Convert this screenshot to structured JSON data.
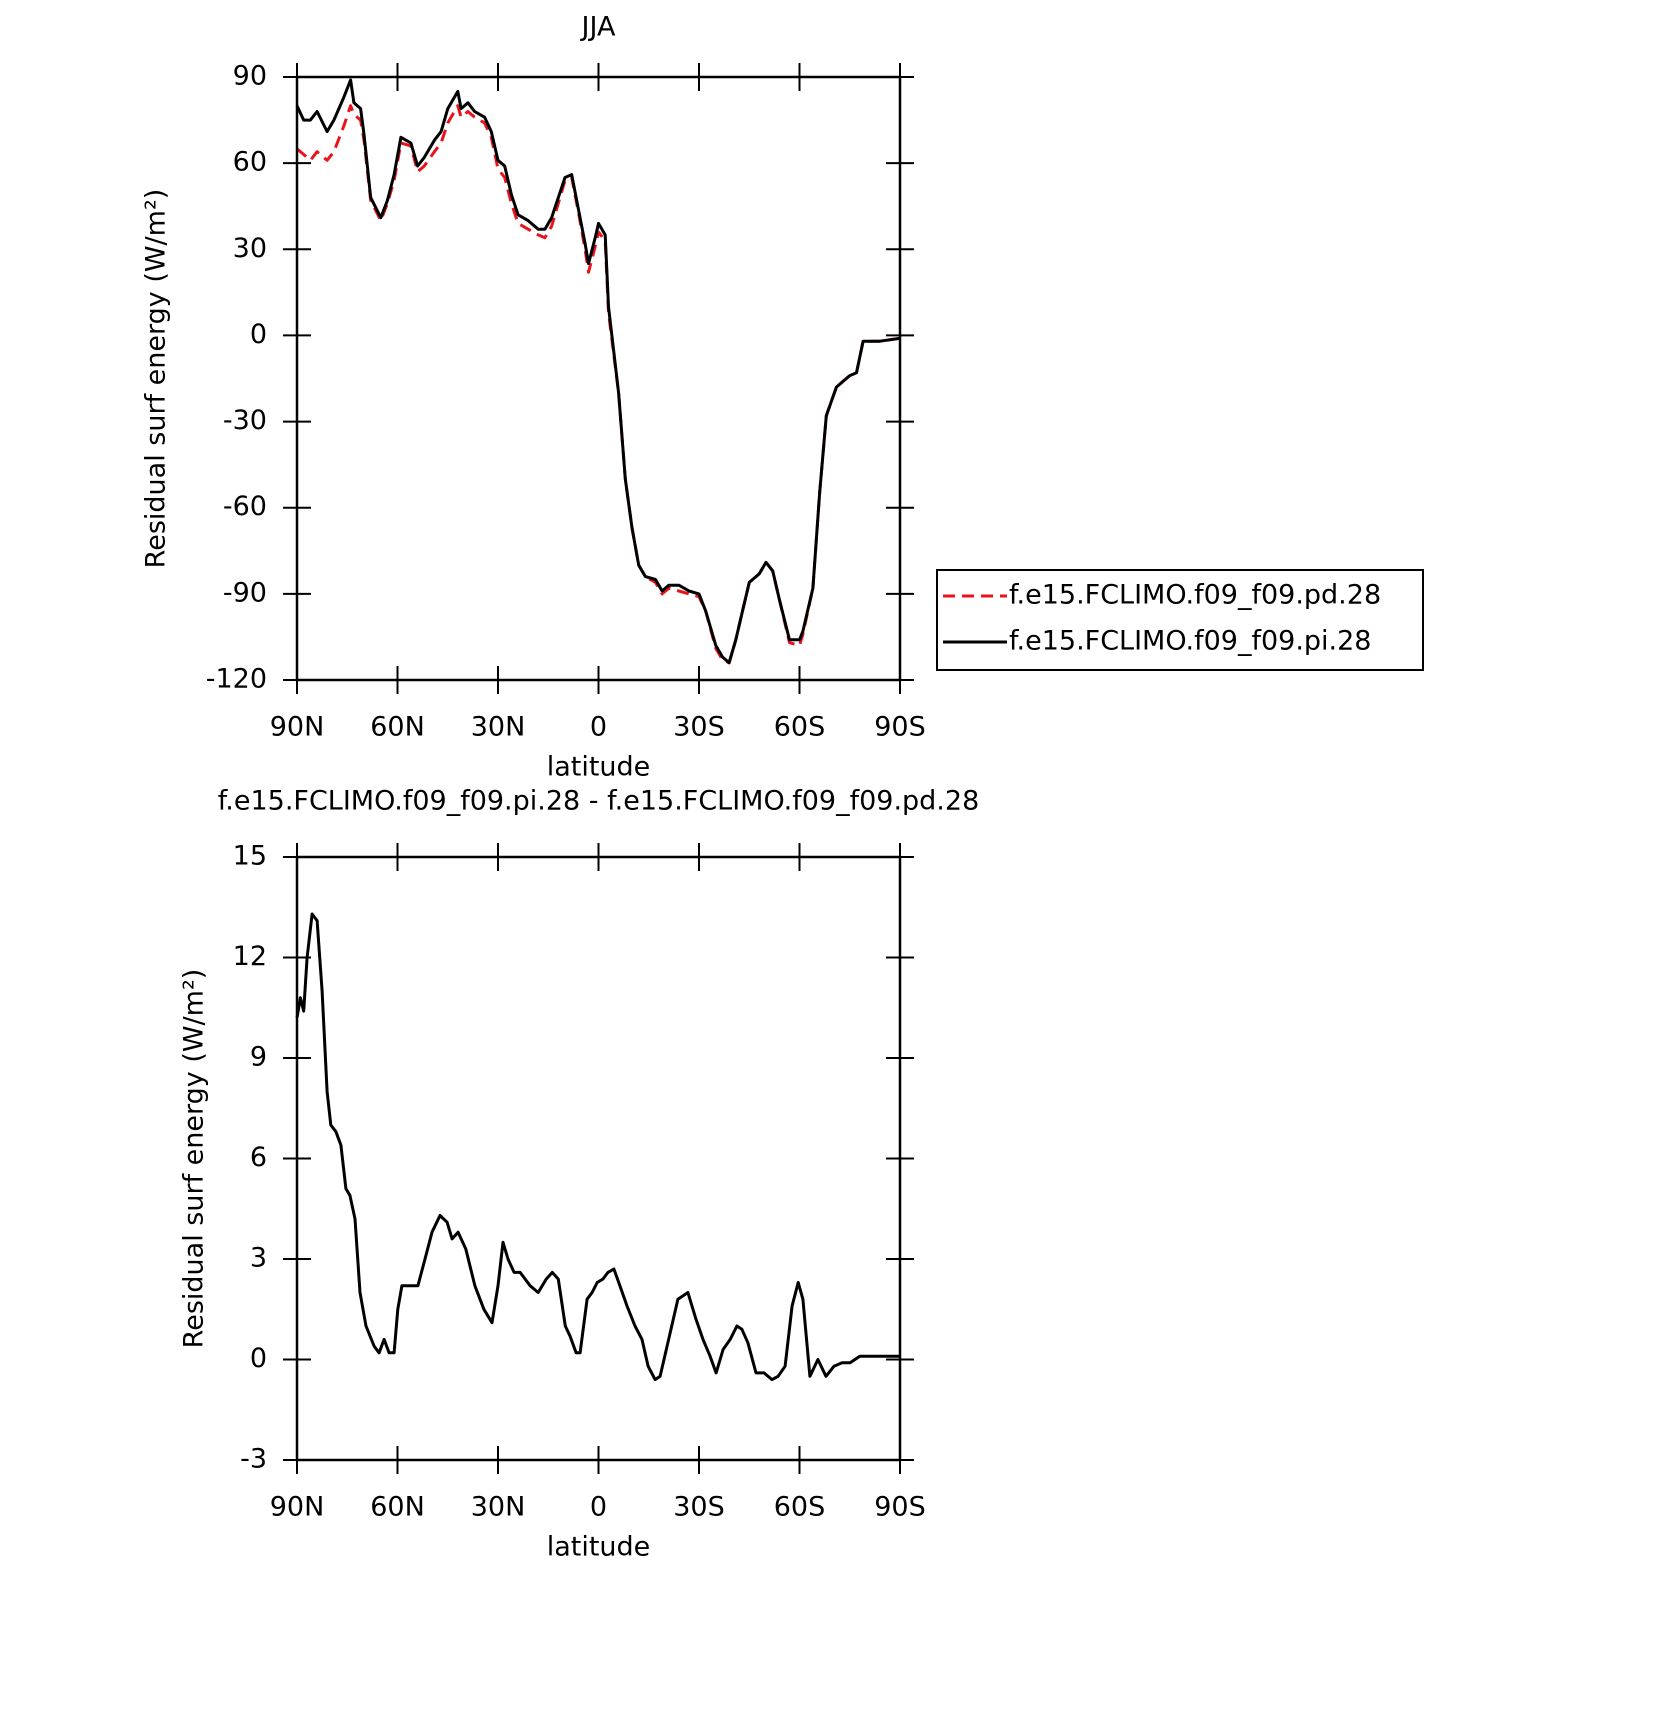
{
  "chart_data": [
    {
      "type": "line",
      "title": "JJA",
      "xlabel": "latitude",
      "ylabel": "Residual surf energy (W/m²)",
      "x": [
        90,
        88,
        86,
        84,
        81,
        79,
        76,
        74,
        73,
        71,
        70,
        68,
        65,
        63,
        61,
        59,
        56,
        54,
        52,
        49,
        47,
        45,
        42,
        41,
        39,
        37,
        34,
        32,
        30,
        28,
        26,
        24,
        21,
        18,
        16,
        14,
        12,
        10,
        8,
        6,
        4,
        3,
        1,
        0,
        -2,
        -3,
        -6,
        -8,
        -10,
        -12,
        -14,
        -17,
        -19,
        -21,
        -24,
        -27,
        -30,
        -32,
        -35,
        -37,
        -39,
        -41,
        -43,
        -45,
        -48,
        -50,
        -52,
        -54,
        -57,
        -60,
        -61,
        -64,
        -66,
        -68,
        -71,
        -73,
        -75,
        -77,
        -79,
        -84,
        -90
      ],
      "series": [
        {
          "name": "f.e15.FCLIMO.f09_f09.pd.28",
          "color": "#e8141c",
          "line_style": "dashed",
          "values": [
            65,
            63,
            61,
            64,
            61,
            64,
            73,
            80,
            77,
            75,
            68,
            47,
            40,
            46,
            54,
            67,
            66,
            57,
            59,
            64,
            67,
            74,
            80,
            76,
            78,
            76,
            74,
            69,
            58,
            55,
            46,
            39,
            37,
            35,
            34,
            38,
            46,
            54,
            55,
            43,
            30,
            22,
            31,
            36,
            33,
            8,
            -20,
            -50,
            -67,
            -80,
            -84,
            -86,
            -90,
            -88,
            -89,
            -90,
            -91,
            -96,
            -109,
            -113,
            -114,
            -106,
            -96,
            -86,
            -83,
            -79,
            -82,
            -92,
            -107,
            -108,
            -104,
            -88,
            -55,
            -28,
            -18,
            -16,
            -14,
            -13,
            -2,
            -2,
            -1
          ]
        },
        {
          "name": "f.e15.FCLIMO.f09_f09.pi.28",
          "color": "#000000",
          "line_style": "solid",
          "values": [
            80,
            75,
            75,
            78,
            71,
            75,
            83,
            89,
            81,
            79,
            70,
            48,
            41,
            47,
            56,
            69,
            67,
            59,
            62,
            68,
            71,
            79,
            85,
            79,
            81,
            78,
            76,
            71,
            61,
            59,
            49,
            42,
            40,
            37,
            37,
            41,
            48,
            55,
            56,
            44,
            32,
            25,
            34,
            39,
            35,
            10,
            -20,
            -50,
            -67,
            -80,
            -84,
            -85,
            -89,
            -87,
            -87,
            -89,
            -90,
            -96,
            -108,
            -112,
            -114,
            -106,
            -96,
            -86,
            -83,
            -79,
            -82,
            -92,
            -106,
            -106,
            -103,
            -88,
            -55,
            -28,
            -18,
            -16,
            -14,
            -13,
            -2,
            -2,
            -1
          ]
        }
      ],
      "xlim": [
        90,
        -90
      ],
      "xticks": [
        {
          "value": 90,
          "label": "90N"
        },
        {
          "value": 60,
          "label": "60N"
        },
        {
          "value": 30,
          "label": "30N"
        },
        0,
        {
          "value": -30,
          "label": "30S"
        },
        {
          "value": -60,
          "label": "60S"
        },
        {
          "value": -90,
          "label": "90S"
        }
      ],
      "ylim": [
        -120,
        90
      ],
      "yticks": [
        -120,
        -90,
        -60,
        -30,
        0,
        30,
        60,
        90
      ],
      "legend": "right"
    },
    {
      "type": "line",
      "title": "f.e15.FCLIMO.f09_f09.pi.28 - f.e15.FCLIMO.f09_f09.pd.28",
      "xlabel": "latitude",
      "ylabel": "Residual surf energy (W/m²)",
      "x": [
        90,
        89,
        88,
        87,
        85.5,
        84,
        82.5,
        81,
        79.9,
        78.4,
        76.9,
        75.4,
        74.2,
        72.7,
        71.2,
        69.4,
        67,
        65.5,
        64,
        62.5,
        61,
        59.9,
        58.7,
        56.9,
        55.4,
        53.9,
        51.8,
        49.7,
        47.3,
        45.2,
        43.7,
        41.9,
        39.6,
        36.9,
        34.2,
        31.8,
        30,
        28.5,
        27,
        25.2,
        23.4,
        20.4,
        18,
        15.6,
        13.8,
        12,
        9.9,
        8.5,
        6.7,
        5.5,
        3.4,
        1.9,
        0.4,
        -1.3,
        -2.8,
        -4.6,
        -6.4,
        -8.5,
        -10.9,
        -13,
        -14.8,
        -16.9,
        -18.4,
        -21.4,
        -23.7,
        -26.7,
        -29.1,
        -31.2,
        -33.3,
        -35.1,
        -37.2,
        -39.3,
        -41.3,
        -42.8,
        -44.6,
        -47,
        -49.4,
        -51.8,
        -53.6,
        -55.7,
        -57.8,
        -59.6,
        -61,
        -63.1,
        -65.5,
        -67.9,
        -70.3,
        -72.7,
        -75.1,
        -78,
        -82.5,
        -90
      ],
      "values": [
        10.2,
        10.8,
        10.4,
        12,
        13.3,
        13.1,
        11,
        8,
        7,
        6.8,
        6.4,
        5.1,
        4.9,
        4.2,
        2,
        1,
        0.4,
        0.2,
        0.6,
        0.2,
        0.2,
        1.5,
        2.2,
        2.2,
        2.2,
        2.2,
        3,
        3.8,
        4.3,
        4.1,
        3.6,
        3.8,
        3.3,
        2.2,
        1.5,
        1.1,
        2.2,
        3.5,
        3,
        2.6,
        2.6,
        2.2,
        2,
        2.4,
        2.6,
        2.4,
        1,
        0.7,
        0.2,
        0.2,
        1.8,
        2,
        2.3,
        2.4,
        2.6,
        2.7,
        2.2,
        1.6,
        1,
        0.6,
        -0.2,
        -0.6,
        -0.5,
        0.8,
        1.8,
        2,
        1.2,
        0.6,
        0.1,
        -0.4,
        0.3,
        0.6,
        1,
        0.9,
        0.5,
        -0.4,
        -0.4,
        -0.6,
        -0.5,
        -0.2,
        1.6,
        2.3,
        1.8,
        -0.5,
        0,
        -0.5,
        -0.2,
        -0.1,
        -0.1,
        0.1,
        0.1,
        0.1
      ],
      "color": "#000000",
      "xlim": [
        90,
        -90
      ],
      "xticks": [
        {
          "value": 90,
          "label": "90N"
        },
        {
          "value": 60,
          "label": "60N"
        },
        {
          "value": 30,
          "label": "30N"
        },
        0,
        {
          "value": -30,
          "label": "30S"
        },
        {
          "value": -60,
          "label": "60S"
        },
        {
          "value": -90,
          "label": "90S"
        }
      ],
      "ylim": [
        -3,
        15
      ],
      "yticks": [
        -3,
        0,
        3,
        6,
        9,
        12,
        15
      ]
    }
  ]
}
